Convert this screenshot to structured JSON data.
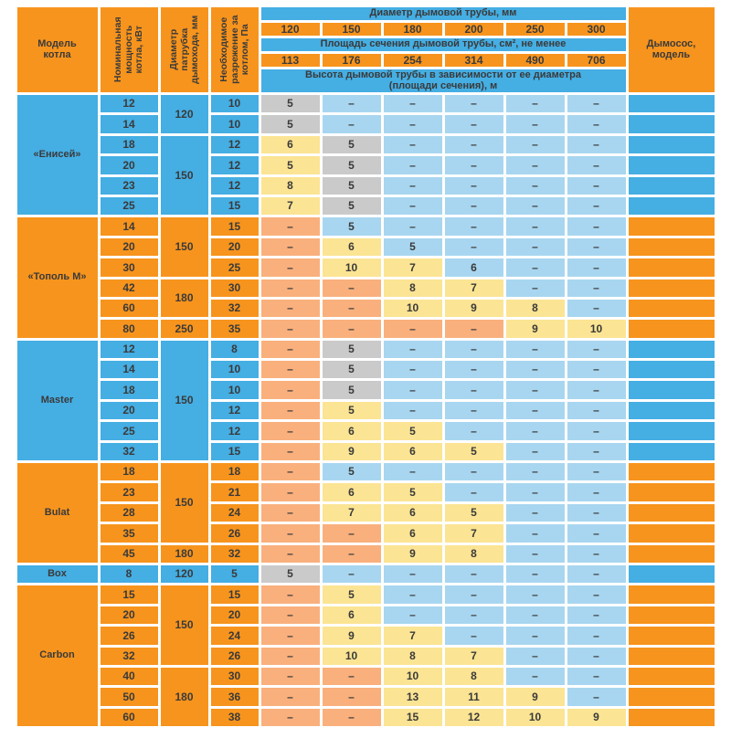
{
  "colors": {
    "orange": "#F7941D",
    "section_blue": "#45AEE3",
    "cell_light_blue": "#A8D6F0",
    "cell_salmon": "#F9B07D",
    "cell_yellow": "#FBE493",
    "cell_gray": "#CACACA",
    "text": "#3A3A3A"
  },
  "dash": "–",
  "header": {
    "model": "Модель котла",
    "power": "Номинальная мощность котла, кВт",
    "socket": "Диаметр патрубка дымохода, мм",
    "draft": "Необходимое разрежение за котлом, Па",
    "pipe_diameter": "Диаметр дымовой трубы, мм",
    "diameters": [
      "120",
      "150",
      "180",
      "200",
      "250",
      "300"
    ],
    "section_area": "Площадь сечения дымовой трубы, см², не менее",
    "areas": [
      "113",
      "176",
      "254",
      "314",
      "490",
      "706"
    ],
    "height": "Высота дымовой трубы в зависимости от ее диаметра (площади сечения), м",
    "exhauster": "Дымосос, модель"
  },
  "sections": [
    {
      "model": "«Енисей»",
      "theme": "blue",
      "sockets": [
        [
          "120",
          2
        ],
        [
          "150",
          4
        ]
      ],
      "rows": [
        {
          "power": "12",
          "draft": "10",
          "cells": [
            [
              "5",
              "g"
            ],
            [
              "–",
              "b"
            ],
            [
              "–",
              "b"
            ],
            [
              "–",
              "b"
            ],
            [
              "–",
              "b"
            ],
            [
              "–",
              "b"
            ]
          ]
        },
        {
          "power": "14",
          "draft": "10",
          "cells": [
            [
              "5",
              "g"
            ],
            [
              "–",
              "b"
            ],
            [
              "–",
              "b"
            ],
            [
              "–",
              "b"
            ],
            [
              "–",
              "b"
            ],
            [
              "–",
              "b"
            ]
          ]
        },
        {
          "power": "18",
          "draft": "12",
          "cells": [
            [
              "6",
              "y"
            ],
            [
              "5",
              "g"
            ],
            [
              "–",
              "b"
            ],
            [
              "–",
              "b"
            ],
            [
              "–",
              "b"
            ],
            [
              "–",
              "b"
            ]
          ]
        },
        {
          "power": "20",
          "draft": "12",
          "cells": [
            [
              "5",
              "y"
            ],
            [
              "5",
              "g"
            ],
            [
              "–",
              "b"
            ],
            [
              "–",
              "b"
            ],
            [
              "–",
              "b"
            ],
            [
              "–",
              "b"
            ]
          ]
        },
        {
          "power": "23",
          "draft": "12",
          "cells": [
            [
              "8",
              "y"
            ],
            [
              "5",
              "g"
            ],
            [
              "–",
              "b"
            ],
            [
              "–",
              "b"
            ],
            [
              "–",
              "b"
            ],
            [
              "–",
              "b"
            ]
          ]
        },
        {
          "power": "25",
          "draft": "15",
          "cells": [
            [
              "7",
              "y"
            ],
            [
              "5",
              "g"
            ],
            [
              "–",
              "b"
            ],
            [
              "–",
              "b"
            ],
            [
              "–",
              "b"
            ],
            [
              "–",
              "b"
            ]
          ]
        }
      ]
    },
    {
      "model": "«Тополь М»",
      "theme": "orange",
      "sockets": [
        [
          "150",
          3
        ],
        [
          "180",
          2
        ],
        [
          "250",
          1
        ]
      ],
      "rows": [
        {
          "power": "14",
          "draft": "15",
          "cells": [
            [
              "–",
              "s"
            ],
            [
              "5",
              "b"
            ],
            [
              "–",
              "b"
            ],
            [
              "–",
              "b"
            ],
            [
              "–",
              "b"
            ],
            [
              "–",
              "b"
            ]
          ]
        },
        {
          "power": "20",
          "draft": "20",
          "cells": [
            [
              "–",
              "s"
            ],
            [
              "6",
              "y"
            ],
            [
              "5",
              "b"
            ],
            [
              "–",
              "b"
            ],
            [
              "–",
              "b"
            ],
            [
              "–",
              "b"
            ]
          ]
        },
        {
          "power": "30",
          "draft": "25",
          "cells": [
            [
              "–",
              "s"
            ],
            [
              "10",
              "y"
            ],
            [
              "7",
              "y"
            ],
            [
              "6",
              "b"
            ],
            [
              "–",
              "b"
            ],
            [
              "–",
              "b"
            ]
          ]
        },
        {
          "power": "42",
          "draft": "30",
          "cells": [
            [
              "–",
              "s"
            ],
            [
              "–",
              "s"
            ],
            [
              "8",
              "y"
            ],
            [
              "7",
              "y"
            ],
            [
              "–",
              "b"
            ],
            [
              "–",
              "b"
            ]
          ]
        },
        {
          "power": "60",
          "draft": "32",
          "cells": [
            [
              "–",
              "s"
            ],
            [
              "–",
              "s"
            ],
            [
              "10",
              "y"
            ],
            [
              "9",
              "y"
            ],
            [
              "8",
              "y"
            ],
            [
              "–",
              "b"
            ]
          ]
        },
        {
          "power": "80",
          "draft": "35",
          "cells": [
            [
              "–",
              "s"
            ],
            [
              "–",
              "s"
            ],
            [
              "–",
              "s"
            ],
            [
              "–",
              "s"
            ],
            [
              "9",
              "y"
            ],
            [
              "10",
              "y"
            ]
          ]
        }
      ]
    },
    {
      "model": "Master",
      "theme": "blue",
      "sockets": [
        [
          "150",
          6
        ]
      ],
      "rows": [
        {
          "power": "12",
          "draft": "8",
          "cells": [
            [
              "–",
              "s"
            ],
            [
              "5",
              "g"
            ],
            [
              "–",
              "b"
            ],
            [
              "–",
              "b"
            ],
            [
              "–",
              "b"
            ],
            [
              "–",
              "b"
            ]
          ]
        },
        {
          "power": "14",
          "draft": "10",
          "cells": [
            [
              "–",
              "s"
            ],
            [
              "5",
              "g"
            ],
            [
              "–",
              "b"
            ],
            [
              "–",
              "b"
            ],
            [
              "–",
              "b"
            ],
            [
              "–",
              "b"
            ]
          ]
        },
        {
          "power": "18",
          "draft": "10",
          "cells": [
            [
              "–",
              "s"
            ],
            [
              "5",
              "g"
            ],
            [
              "–",
              "b"
            ],
            [
              "–",
              "b"
            ],
            [
              "–",
              "b"
            ],
            [
              "–",
              "b"
            ]
          ]
        },
        {
          "power": "20",
          "draft": "12",
          "cells": [
            [
              "–",
              "s"
            ],
            [
              "5",
              "y"
            ],
            [
              "–",
              "b"
            ],
            [
              "–",
              "b"
            ],
            [
              "–",
              "b"
            ],
            [
              "–",
              "b"
            ]
          ]
        },
        {
          "power": "25",
          "draft": "12",
          "cells": [
            [
              "–",
              "s"
            ],
            [
              "6",
              "y"
            ],
            [
              "5",
              "y"
            ],
            [
              "–",
              "b"
            ],
            [
              "–",
              "b"
            ],
            [
              "–",
              "b"
            ]
          ]
        },
        {
          "power": "32",
          "draft": "15",
          "cells": [
            [
              "–",
              "s"
            ],
            [
              "9",
              "y"
            ],
            [
              "6",
              "y"
            ],
            [
              "5",
              "y"
            ],
            [
              "–",
              "b"
            ],
            [
              "–",
              "b"
            ]
          ]
        }
      ]
    },
    {
      "model": "Bulat",
      "theme": "orange",
      "sockets": [
        [
          "150",
          4
        ],
        [
          "180",
          1
        ]
      ],
      "rows": [
        {
          "power": "18",
          "draft": "18",
          "cells": [
            [
              "–",
              "s"
            ],
            [
              "5",
              "b"
            ],
            [
              "–",
              "b"
            ],
            [
              "–",
              "b"
            ],
            [
              "–",
              "b"
            ],
            [
              "–",
              "b"
            ]
          ]
        },
        {
          "power": "23",
          "draft": "21",
          "cells": [
            [
              "–",
              "s"
            ],
            [
              "6",
              "y"
            ],
            [
              "5",
              "y"
            ],
            [
              "–",
              "b"
            ],
            [
              "–",
              "b"
            ],
            [
              "–",
              "b"
            ]
          ]
        },
        {
          "power": "28",
          "draft": "24",
          "cells": [
            [
              "–",
              "s"
            ],
            [
              "7",
              "y"
            ],
            [
              "6",
              "y"
            ],
            [
              "5",
              "y"
            ],
            [
              "–",
              "b"
            ],
            [
              "–",
              "b"
            ]
          ]
        },
        {
          "power": "35",
          "draft": "26",
          "cells": [
            [
              "–",
              "s"
            ],
            [
              "–",
              "s"
            ],
            [
              "6",
              "y"
            ],
            [
              "7",
              "y"
            ],
            [
              "–",
              "b"
            ],
            [
              "–",
              "b"
            ]
          ]
        },
        {
          "power": "45",
          "draft": "32",
          "cells": [
            [
              "–",
              "s"
            ],
            [
              "–",
              "s"
            ],
            [
              "9",
              "y"
            ],
            [
              "8",
              "y"
            ],
            [
              "–",
              "b"
            ],
            [
              "–",
              "b"
            ]
          ]
        }
      ]
    },
    {
      "model": "Box",
      "theme": "blue",
      "sockets": [
        [
          "120",
          1
        ]
      ],
      "rows": [
        {
          "power": "8",
          "draft": "5",
          "cells": [
            [
              "5",
              "g"
            ],
            [
              "–",
              "b"
            ],
            [
              "–",
              "b"
            ],
            [
              "–",
              "b"
            ],
            [
              "–",
              "b"
            ],
            [
              "–",
              "b"
            ]
          ]
        }
      ]
    },
    {
      "model": "Carbon",
      "theme": "orange",
      "sockets": [
        [
          "150",
          4
        ],
        [
          "180",
          3
        ]
      ],
      "rows": [
        {
          "power": "15",
          "draft": "15",
          "cells": [
            [
              "–",
              "s"
            ],
            [
              "5",
              "y"
            ],
            [
              "–",
              "b"
            ],
            [
              "–",
              "b"
            ],
            [
              "–",
              "b"
            ],
            [
              "–",
              "b"
            ]
          ]
        },
        {
          "power": "20",
          "draft": "20",
          "cells": [
            [
              "–",
              "s"
            ],
            [
              "6",
              "y"
            ],
            [
              "–",
              "b"
            ],
            [
              "–",
              "b"
            ],
            [
              "–",
              "b"
            ],
            [
              "–",
              "b"
            ]
          ]
        },
        {
          "power": "26",
          "draft": "24",
          "cells": [
            [
              "–",
              "s"
            ],
            [
              "9",
              "y"
            ],
            [
              "7",
              "y"
            ],
            [
              "–",
              "b"
            ],
            [
              "–",
              "b"
            ],
            [
              "–",
              "b"
            ]
          ]
        },
        {
          "power": "32",
          "draft": "26",
          "cells": [
            [
              "–",
              "s"
            ],
            [
              "10",
              "y"
            ],
            [
              "8",
              "y"
            ],
            [
              "7",
              "y"
            ],
            [
              "–",
              "b"
            ],
            [
              "–",
              "b"
            ]
          ]
        },
        {
          "power": "40",
          "draft": "30",
          "cells": [
            [
              "–",
              "s"
            ],
            [
              "–",
              "s"
            ],
            [
              "10",
              "y"
            ],
            [
              "8",
              "y"
            ],
            [
              "–",
              "b"
            ],
            [
              "–",
              "b"
            ]
          ]
        },
        {
          "power": "50",
          "draft": "36",
          "cells": [
            [
              "–",
              "s"
            ],
            [
              "–",
              "s"
            ],
            [
              "13",
              "y"
            ],
            [
              "11",
              "y"
            ],
            [
              "9",
              "y"
            ],
            [
              "–",
              "b"
            ]
          ]
        },
        {
          "power": "60",
          "draft": "38",
          "cells": [
            [
              "–",
              "s"
            ],
            [
              "–",
              "s"
            ],
            [
              "15",
              "y"
            ],
            [
              "12",
              "y"
            ],
            [
              "10",
              "y"
            ],
            [
              "9",
              "y"
            ]
          ]
        }
      ]
    }
  ]
}
